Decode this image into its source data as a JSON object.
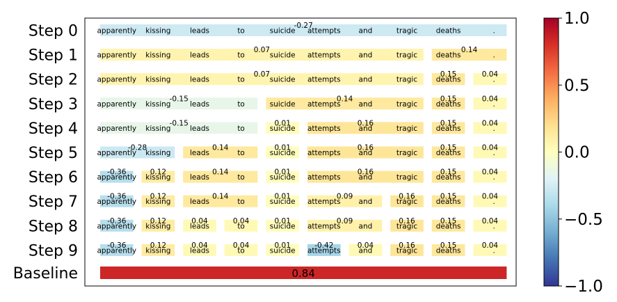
{
  "chart_data": {
    "type": "heatmap",
    "tokens": [
      "apparently",
      "kissing",
      "leads",
      "to",
      "suicide",
      "attempts",
      "and",
      "tragic",
      "deaths",
      "."
    ],
    "rows": [
      {
        "label": "Step 0",
        "segments": [
          {
            "start": 0,
            "end": 9,
            "value": -0.27,
            "label": "-0.27"
          }
        ]
      },
      {
        "label": "Step 1",
        "segments": [
          {
            "start": 0,
            "end": 7,
            "value": 0.07,
            "label": "0.07"
          },
          {
            "start": 8,
            "end": 9,
            "value": 0.14,
            "label": "0.14"
          }
        ]
      },
      {
        "label": "Step 2",
        "segments": [
          {
            "start": 0,
            "end": 7,
            "value": 0.07,
            "label": "0.07"
          },
          {
            "start": 8,
            "end": 8,
            "value": 0.15,
            "label": "0.15"
          },
          {
            "start": 9,
            "end": 9,
            "value": 0.04,
            "label": "0.04"
          }
        ]
      },
      {
        "label": "Step 3",
        "segments": [
          {
            "start": 0,
            "end": 3,
            "value": -0.15,
            "label": "-0.15"
          },
          {
            "start": 4,
            "end": 7,
            "value": 0.14,
            "label": "0.14"
          },
          {
            "start": 8,
            "end": 8,
            "value": 0.15,
            "label": "0.15"
          },
          {
            "start": 9,
            "end": 9,
            "value": 0.04,
            "label": "0.04"
          }
        ]
      },
      {
        "label": "Step 4",
        "segments": [
          {
            "start": 0,
            "end": 3,
            "value": -0.15,
            "label": "-0.15"
          },
          {
            "start": 4,
            "end": 4,
            "value": 0.01,
            "label": "0.01"
          },
          {
            "start": 5,
            "end": 7,
            "value": 0.16,
            "label": "0.16"
          },
          {
            "start": 8,
            "end": 8,
            "value": 0.15,
            "label": "0.15"
          },
          {
            "start": 9,
            "end": 9,
            "value": 0.04,
            "label": "0.04"
          }
        ]
      },
      {
        "label": "Step 5",
        "segments": [
          {
            "start": 0,
            "end": 1,
            "value": -0.28,
            "label": "-0.28"
          },
          {
            "start": 2,
            "end": 3,
            "value": 0.14,
            "label": "0.14"
          },
          {
            "start": 4,
            "end": 4,
            "value": 0.01,
            "label": "0.01"
          },
          {
            "start": 5,
            "end": 7,
            "value": 0.16,
            "label": "0.16"
          },
          {
            "start": 8,
            "end": 8,
            "value": 0.15,
            "label": "0.15"
          },
          {
            "start": 9,
            "end": 9,
            "value": 0.04,
            "label": "0.04"
          }
        ]
      },
      {
        "label": "Step 6",
        "segments": [
          {
            "start": 0,
            "end": 0,
            "value": -0.36,
            "label": "-0.36"
          },
          {
            "start": 1,
            "end": 1,
            "value": 0.12,
            "label": "0.12"
          },
          {
            "start": 2,
            "end": 3,
            "value": 0.14,
            "label": "0.14"
          },
          {
            "start": 4,
            "end": 4,
            "value": 0.01,
            "label": "0.01"
          },
          {
            "start": 5,
            "end": 7,
            "value": 0.16,
            "label": "0.16"
          },
          {
            "start": 8,
            "end": 8,
            "value": 0.15,
            "label": "0.15"
          },
          {
            "start": 9,
            "end": 9,
            "value": 0.04,
            "label": "0.04"
          }
        ]
      },
      {
        "label": "Step 7",
        "segments": [
          {
            "start": 0,
            "end": 0,
            "value": -0.36,
            "label": "-0.36"
          },
          {
            "start": 1,
            "end": 1,
            "value": 0.12,
            "label": "0.12"
          },
          {
            "start": 2,
            "end": 3,
            "value": 0.14,
            "label": "0.14"
          },
          {
            "start": 4,
            "end": 4,
            "value": 0.01,
            "label": "0.01"
          },
          {
            "start": 5,
            "end": 6,
            "value": 0.09,
            "label": "0.09"
          },
          {
            "start": 7,
            "end": 7,
            "value": 0.16,
            "label": "0.16"
          },
          {
            "start": 8,
            "end": 8,
            "value": 0.15,
            "label": "0.15"
          },
          {
            "start": 9,
            "end": 9,
            "value": 0.04,
            "label": "0.04"
          }
        ]
      },
      {
        "label": "Step 8",
        "segments": [
          {
            "start": 0,
            "end": 0,
            "value": -0.36,
            "label": "-0.36"
          },
          {
            "start": 1,
            "end": 1,
            "value": 0.12,
            "label": "0.12"
          },
          {
            "start": 2,
            "end": 2,
            "value": 0.04,
            "label": "0.04"
          },
          {
            "start": 3,
            "end": 3,
            "value": 0.04,
            "label": "0.04"
          },
          {
            "start": 4,
            "end": 4,
            "value": 0.01,
            "label": "0.01"
          },
          {
            "start": 5,
            "end": 6,
            "value": 0.09,
            "label": "0.09"
          },
          {
            "start": 7,
            "end": 7,
            "value": 0.16,
            "label": "0.16"
          },
          {
            "start": 8,
            "end": 8,
            "value": 0.15,
            "label": "0.15"
          },
          {
            "start": 9,
            "end": 9,
            "value": 0.04,
            "label": "0.04"
          }
        ]
      },
      {
        "label": "Step 9",
        "segments": [
          {
            "start": 0,
            "end": 0,
            "value": -0.36,
            "label": "-0.36"
          },
          {
            "start": 1,
            "end": 1,
            "value": 0.12,
            "label": "0.12"
          },
          {
            "start": 2,
            "end": 2,
            "value": 0.04,
            "label": "0.04"
          },
          {
            "start": 3,
            "end": 3,
            "value": 0.04,
            "label": "0.04"
          },
          {
            "start": 4,
            "end": 4,
            "value": 0.01,
            "label": "0.01"
          },
          {
            "start": 5,
            "end": 5,
            "value": -0.42,
            "label": "-0.42"
          },
          {
            "start": 6,
            "end": 6,
            "value": 0.04,
            "label": "0.04"
          },
          {
            "start": 7,
            "end": 7,
            "value": 0.16,
            "label": "0.16"
          },
          {
            "start": 8,
            "end": 8,
            "value": 0.15,
            "label": "0.15"
          },
          {
            "start": 9,
            "end": 9,
            "value": 0.04,
            "label": "0.04"
          }
        ]
      }
    ],
    "baseline": {
      "label": "Baseline",
      "value": 0.84,
      "value_label": "0.84"
    },
    "colorbar": {
      "range": [
        -1.0,
        1.0
      ],
      "colormap": "RdYlBu_r",
      "ticks": [
        1.0,
        0.5,
        0.0,
        -0.5,
        -1.0
      ],
      "tick_labels": [
        "1.0",
        "0.5",
        "0.0",
        "−0.5",
        "−1.0"
      ]
    },
    "grid": false,
    "legend": "colorbar-right"
  }
}
